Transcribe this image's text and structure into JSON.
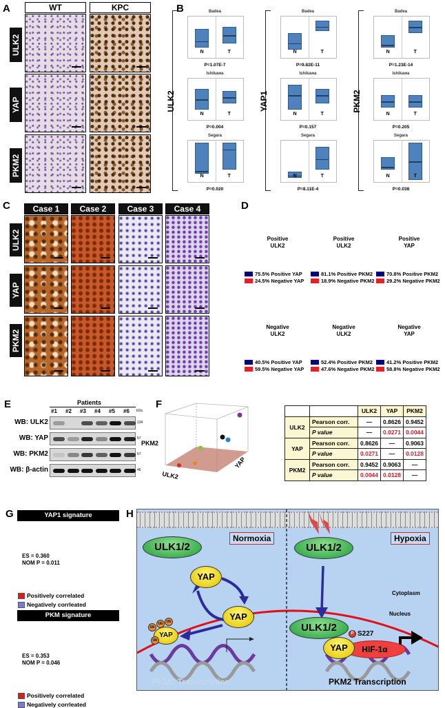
{
  "panels": {
    "a": "A",
    "b": "B",
    "c": "C",
    "d": "D",
    "e": "E",
    "f": "F",
    "g": "G",
    "h": "H"
  },
  "panel_a": {
    "columns": [
      "WT",
      "KPC"
    ],
    "rows": [
      "ULK2",
      "YAP",
      "PKM2"
    ]
  },
  "panel_b": {
    "genes": [
      "ULK2",
      "YAP1",
      "PKM2"
    ],
    "datasets": [
      "Badea",
      "Ishikawa",
      "Segara"
    ],
    "group_labels": [
      "N",
      "T"
    ],
    "p_values": [
      [
        "P=1.07E-7",
        "P=0.004",
        "P=0.020"
      ],
      [
        "P=9.82E-11",
        "P=0.157",
        "P=8.11E-4"
      ],
      [
        "P=1.23E-14",
        "P=0.205",
        "P=0.038"
      ]
    ],
    "box_color": "#4f81bd"
  },
  "panel_c": {
    "columns": [
      "Case 1",
      "Case 2",
      "Case 3",
      "Case 4"
    ],
    "rows": [
      "ULK2",
      "YAP",
      "PKM2"
    ]
  },
  "chart_data": [
    {
      "type": "pie",
      "variant": "donut",
      "center": "Positive ULK2",
      "slices": [
        {
          "label": "75.5% Positive YAP",
          "value": 75.5,
          "color": "#00007f"
        },
        {
          "label": "24.5% Negative YAP",
          "value": 24.5,
          "color": "#ee1c25"
        }
      ]
    },
    {
      "type": "pie",
      "variant": "donut",
      "center": "Positive ULK2",
      "slices": [
        {
          "label": "81.1% Positive PKM2",
          "value": 81.1,
          "color": "#00007f"
        },
        {
          "label": "18.9% Negative PKM2",
          "value": 18.9,
          "color": "#ee1c25"
        }
      ]
    },
    {
      "type": "pie",
      "variant": "donut",
      "center": "Positive YAP",
      "slices": [
        {
          "label": "70.8% Positive PKM2",
          "value": 70.8,
          "color": "#00007f"
        },
        {
          "label": "29.2% Negative PKM2",
          "value": 29.2,
          "color": "#ee1c25"
        }
      ]
    },
    {
      "type": "pie",
      "variant": "donut",
      "center": "Negative ULK2",
      "slices": [
        {
          "label": "40.5% Positive YAP",
          "value": 40.5,
          "color": "#00007f"
        },
        {
          "label": "59.5% Negative YAP",
          "value": 59.5,
          "color": "#ee1c25"
        }
      ]
    },
    {
      "type": "pie",
      "variant": "donut",
      "center": "Negative ULK2",
      "slices": [
        {
          "label": "52.4% Positive PKM2",
          "value": 52.4,
          "color": "#00007f"
        },
        {
          "label": "47.6% Negative PKM2",
          "value": 47.6,
          "color": "#ee1c25"
        }
      ]
    },
    {
      "type": "pie",
      "variant": "donut",
      "center": "Negative YAP",
      "slices": [
        {
          "label": "41.2% Positive PKM2",
          "value": 41.2,
          "color": "#00007f"
        },
        {
          "label": "58.8% Negative PKM2",
          "value": 58.8,
          "color": "#ee1c25"
        }
      ]
    }
  ],
  "panel_e": {
    "title": "Patients",
    "lanes": [
      "#1",
      "#2",
      "#3",
      "#4",
      "#5",
      "#6"
    ],
    "kda_label": "kDa",
    "blots": [
      {
        "label": "WB: ULK2",
        "kda": "134",
        "intensity": [
          0.3,
          0,
          0.7,
          0.6,
          1,
          0.7
        ]
      },
      {
        "label": "WB: YAP",
        "kda": "57",
        "intensity": [
          0.7,
          0.3,
          0.9,
          0.4,
          1,
          0.9
        ]
      },
      {
        "label": "WB: PKM2",
        "kda": "57",
        "intensity": [
          0.1,
          0.4,
          0.8,
          0.6,
          1,
          0.8
        ]
      },
      {
        "label": "WB: β-actin",
        "kda": "46",
        "intensity": [
          1,
          1,
          1,
          1,
          1,
          1
        ]
      }
    ]
  },
  "panel_f": {
    "axes": {
      "x": "ULK2",
      "y": "YAP",
      "z": "PKM2"
    },
    "table": {
      "columns": [
        "ULK2",
        "YAP",
        "PKM2"
      ],
      "rows": [
        {
          "gene": "ULK2",
          "pearson_label": "Pearson corr.",
          "p_label": "P value",
          "pearson": [
            "—",
            "0.8626",
            "0.9452"
          ],
          "p": [
            "—",
            "0.0271",
            "0.0044"
          ]
        },
        {
          "gene": "YAP",
          "pearson_label": "Pearson corr.",
          "p_label": "P value",
          "pearson": [
            "0.8626",
            "—",
            "0.9063"
          ],
          "p": [
            "0.0271",
            "—",
            "0.0128"
          ]
        },
        {
          "gene": "PKM2",
          "pearson_label": "Pearson corr.",
          "p_label": "P value",
          "pearson": [
            "0.9452",
            "0.9063",
            "—"
          ],
          "p": [
            "0.0044",
            "0.0128",
            "—"
          ]
        }
      ]
    }
  },
  "panel_g": [
    {
      "title": "YAP1 signature",
      "es": "ES = 0.360",
      "nom": "NOM P = 0.011",
      "pos": "Positively correlated",
      "neg": "Negatively corrleated"
    },
    {
      "title": "PKM signature",
      "es": "ES = 0.353",
      "nom": "NOM P = 0.046",
      "pos": "Positively correlated",
      "neg": "Negatively corrleated"
    }
  ],
  "panel_h": {
    "normoxia": "Normoxia",
    "hypoxia": "Hypoxia",
    "ulk": "ULK1/2",
    "yap": "YAP",
    "ub": "Ub",
    "cytoplasm": "Cytoplasm",
    "nucleus": "Nucleus",
    "s227": "S227",
    "p": "P",
    "hif": "HIF-1α",
    "transcription": "PKM2 Transcription"
  }
}
